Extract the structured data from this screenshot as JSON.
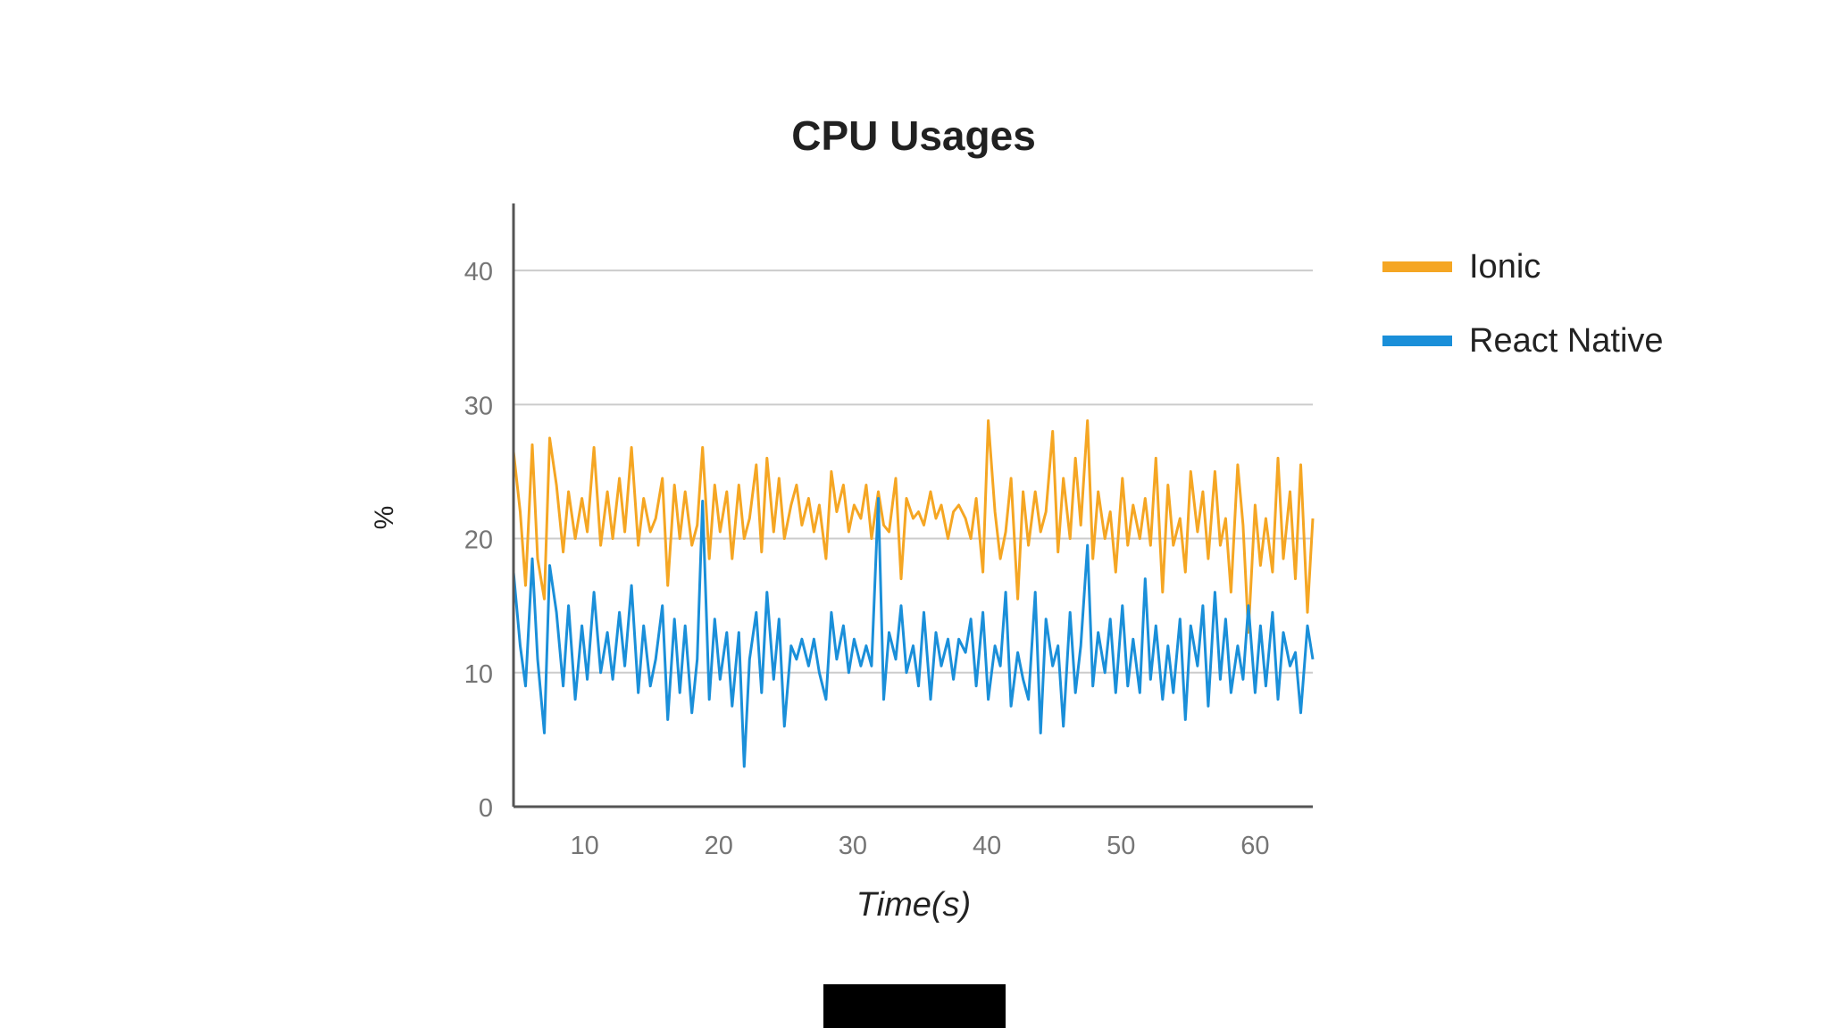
{
  "chart_data": {
    "type": "line",
    "title": "CPU Usages",
    "xlabel": "Time(s)",
    "ylabel": "%",
    "xlim": [
      4.7,
      64.3
    ],
    "ylim": [
      0,
      45
    ],
    "xticks": [
      10,
      20,
      30,
      40,
      50,
      60
    ],
    "yticks": [
      0,
      10,
      20,
      30,
      40
    ],
    "grid": true,
    "legend": "right",
    "series": [
      {
        "name": "Ionic",
        "color": "#F5A623",
        "values": [
          [
            4.7,
            26.5
          ],
          [
            5.2,
            22.0
          ],
          [
            5.6,
            16.5
          ],
          [
            6.1,
            27.0
          ],
          [
            6.5,
            18.5
          ],
          [
            7.0,
            15.5
          ],
          [
            7.4,
            27.5
          ],
          [
            7.9,
            24.0
          ],
          [
            8.4,
            19.0
          ],
          [
            8.8,
            23.5
          ],
          [
            9.3,
            20.0
          ],
          [
            9.8,
            23.0
          ],
          [
            10.2,
            20.5
          ],
          [
            10.7,
            26.8
          ],
          [
            11.2,
            19.5
          ],
          [
            11.7,
            23.5
          ],
          [
            12.1,
            20.0
          ],
          [
            12.6,
            24.5
          ],
          [
            13.0,
            20.5
          ],
          [
            13.5,
            26.8
          ],
          [
            14.0,
            19.5
          ],
          [
            14.4,
            23.0
          ],
          [
            14.9,
            20.5
          ],
          [
            15.3,
            21.5
          ],
          [
            15.8,
            24.5
          ],
          [
            16.2,
            16.5
          ],
          [
            16.7,
            24.0
          ],
          [
            17.1,
            20.0
          ],
          [
            17.5,
            23.5
          ],
          [
            18.0,
            19.5
          ],
          [
            18.4,
            21.0
          ],
          [
            18.8,
            26.8
          ],
          [
            19.3,
            18.5
          ],
          [
            19.7,
            24.0
          ],
          [
            20.1,
            20.5
          ],
          [
            20.6,
            23.5
          ],
          [
            21.0,
            18.5
          ],
          [
            21.5,
            24.0
          ],
          [
            21.9,
            20.0
          ],
          [
            22.3,
            21.5
          ],
          [
            22.8,
            25.5
          ],
          [
            23.2,
            19.0
          ],
          [
            23.6,
            26.0
          ],
          [
            24.1,
            20.5
          ],
          [
            24.5,
            24.5
          ],
          [
            24.9,
            20.0
          ],
          [
            25.4,
            22.5
          ],
          [
            25.8,
            24.0
          ],
          [
            26.2,
            21.0
          ],
          [
            26.7,
            23.0
          ],
          [
            27.1,
            20.5
          ],
          [
            27.5,
            22.5
          ],
          [
            28.0,
            18.5
          ],
          [
            28.4,
            25.0
          ],
          [
            28.8,
            22.0
          ],
          [
            29.3,
            24.0
          ],
          [
            29.7,
            20.5
          ],
          [
            30.1,
            22.5
          ],
          [
            30.6,
            21.5
          ],
          [
            31.0,
            24.0
          ],
          [
            31.4,
            20.0
          ],
          [
            31.9,
            23.5
          ],
          [
            32.3,
            21.0
          ],
          [
            32.7,
            20.5
          ],
          [
            33.2,
            24.5
          ],
          [
            33.6,
            17.0
          ],
          [
            34.0,
            23.0
          ],
          [
            34.5,
            21.5
          ],
          [
            34.9,
            22.0
          ],
          [
            35.3,
            21.0
          ],
          [
            35.8,
            23.5
          ],
          [
            36.2,
            21.5
          ],
          [
            36.6,
            22.5
          ],
          [
            37.1,
            20.0
          ],
          [
            37.5,
            22.0
          ],
          [
            37.9,
            22.5
          ],
          [
            38.4,
            21.5
          ],
          [
            38.8,
            20.0
          ],
          [
            39.2,
            23.0
          ],
          [
            39.7,
            17.5
          ],
          [
            40.1,
            28.8
          ],
          [
            40.6,
            22.0
          ],
          [
            41.0,
            18.5
          ],
          [
            41.4,
            20.5
          ],
          [
            41.8,
            24.5
          ],
          [
            42.3,
            15.5
          ],
          [
            42.7,
            23.5
          ],
          [
            43.1,
            19.5
          ],
          [
            43.6,
            23.5
          ],
          [
            44.0,
            20.5
          ],
          [
            44.4,
            22.0
          ],
          [
            44.9,
            28.0
          ],
          [
            45.3,
            19.0
          ],
          [
            45.7,
            24.5
          ],
          [
            46.2,
            20.0
          ],
          [
            46.6,
            26.0
          ],
          [
            47.0,
            21.0
          ],
          [
            47.5,
            28.8
          ],
          [
            47.9,
            18.5
          ],
          [
            48.3,
            23.5
          ],
          [
            48.8,
            20.0
          ],
          [
            49.2,
            22.0
          ],
          [
            49.6,
            17.5
          ],
          [
            50.1,
            24.5
          ],
          [
            50.5,
            19.5
          ],
          [
            50.9,
            22.5
          ],
          [
            51.4,
            20.0
          ],
          [
            51.8,
            23.0
          ],
          [
            52.2,
            19.5
          ],
          [
            52.6,
            26.0
          ],
          [
            53.1,
            16.0
          ],
          [
            53.5,
            24.0
          ],
          [
            53.9,
            19.5
          ],
          [
            54.4,
            21.5
          ],
          [
            54.8,
            17.5
          ],
          [
            55.2,
            25.0
          ],
          [
            55.7,
            20.5
          ],
          [
            56.1,
            23.5
          ],
          [
            56.5,
            18.5
          ],
          [
            57.0,
            25.0
          ],
          [
            57.4,
            19.5
          ],
          [
            57.8,
            21.5
          ],
          [
            58.2,
            16.0
          ],
          [
            58.7,
            25.5
          ],
          [
            59.1,
            21.0
          ],
          [
            59.5,
            13.0
          ],
          [
            60.0,
            22.5
          ],
          [
            60.4,
            18.0
          ],
          [
            60.8,
            21.5
          ],
          [
            61.3,
            17.5
          ],
          [
            61.7,
            26.0
          ],
          [
            62.1,
            18.5
          ],
          [
            62.6,
            23.5
          ],
          [
            63.0,
            17.0
          ],
          [
            63.4,
            25.5
          ],
          [
            63.9,
            14.5
          ],
          [
            64.3,
            21.5
          ]
        ]
      },
      {
        "name": "React Native",
        "color": "#1A8FD9",
        "values": [
          [
            4.7,
            17.5
          ],
          [
            5.2,
            12.0
          ],
          [
            5.6,
            9.0
          ],
          [
            6.1,
            18.5
          ],
          [
            6.5,
            11.0
          ],
          [
            7.0,
            5.5
          ],
          [
            7.4,
            18.0
          ],
          [
            7.9,
            14.5
          ],
          [
            8.4,
            9.0
          ],
          [
            8.8,
            15.0
          ],
          [
            9.3,
            8.0
          ],
          [
            9.8,
            13.5
          ],
          [
            10.2,
            9.5
          ],
          [
            10.7,
            16.0
          ],
          [
            11.2,
            10.0
          ],
          [
            11.7,
            13.0
          ],
          [
            12.1,
            9.5
          ],
          [
            12.6,
            14.5
          ],
          [
            13.0,
            10.5
          ],
          [
            13.5,
            16.5
          ],
          [
            14.0,
            8.5
          ],
          [
            14.4,
            13.5
          ],
          [
            14.9,
            9.0
          ],
          [
            15.3,
            11.0
          ],
          [
            15.8,
            15.0
          ],
          [
            16.2,
            6.5
          ],
          [
            16.7,
            14.0
          ],
          [
            17.1,
            8.5
          ],
          [
            17.5,
            13.5
          ],
          [
            18.0,
            7.0
          ],
          [
            18.4,
            11.0
          ],
          [
            18.8,
            22.8
          ],
          [
            19.3,
            8.0
          ],
          [
            19.7,
            14.0
          ],
          [
            20.1,
            9.5
          ],
          [
            20.6,
            13.0
          ],
          [
            21.0,
            7.5
          ],
          [
            21.5,
            13.0
          ],
          [
            21.9,
            3.0
          ],
          [
            22.3,
            11.0
          ],
          [
            22.8,
            14.5
          ],
          [
            23.2,
            8.5
          ],
          [
            23.6,
            16.0
          ],
          [
            24.1,
            9.5
          ],
          [
            24.5,
            14.0
          ],
          [
            24.9,
            6.0
          ],
          [
            25.4,
            12.0
          ],
          [
            25.8,
            11.0
          ],
          [
            26.2,
            12.5
          ],
          [
            26.7,
            10.5
          ],
          [
            27.1,
            12.5
          ],
          [
            27.5,
            10.0
          ],
          [
            28.0,
            8.0
          ],
          [
            28.4,
            14.5
          ],
          [
            28.8,
            11.0
          ],
          [
            29.3,
            13.5
          ],
          [
            29.7,
            10.0
          ],
          [
            30.1,
            12.5
          ],
          [
            30.6,
            10.5
          ],
          [
            31.0,
            12.0
          ],
          [
            31.4,
            10.5
          ],
          [
            31.9,
            23.0
          ],
          [
            32.3,
            8.0
          ],
          [
            32.7,
            13.0
          ],
          [
            33.2,
            11.0
          ],
          [
            33.6,
            15.0
          ],
          [
            34.0,
            10.0
          ],
          [
            34.5,
            12.0
          ],
          [
            34.9,
            9.0
          ],
          [
            35.3,
            14.5
          ],
          [
            35.8,
            8.0
          ],
          [
            36.2,
            13.0
          ],
          [
            36.6,
            10.5
          ],
          [
            37.1,
            12.5
          ],
          [
            37.5,
            9.5
          ],
          [
            37.9,
            12.5
          ],
          [
            38.4,
            11.5
          ],
          [
            38.8,
            14.0
          ],
          [
            39.2,
            9.0
          ],
          [
            39.7,
            14.5
          ],
          [
            40.1,
            8.0
          ],
          [
            40.6,
            12.0
          ],
          [
            41.0,
            10.5
          ],
          [
            41.4,
            16.0
          ],
          [
            41.8,
            7.5
          ],
          [
            42.3,
            11.5
          ],
          [
            42.7,
            9.5
          ],
          [
            43.1,
            8.0
          ],
          [
            43.6,
            16.0
          ],
          [
            44.0,
            5.5
          ],
          [
            44.4,
            14.0
          ],
          [
            44.9,
            10.5
          ],
          [
            45.3,
            12.0
          ],
          [
            45.7,
            6.0
          ],
          [
            46.2,
            14.5
          ],
          [
            46.6,
            8.5
          ],
          [
            47.0,
            12.0
          ],
          [
            47.5,
            19.5
          ],
          [
            47.9,
            9.0
          ],
          [
            48.3,
            13.0
          ],
          [
            48.8,
            10.0
          ],
          [
            49.2,
            14.0
          ],
          [
            49.6,
            8.5
          ],
          [
            50.1,
            15.0
          ],
          [
            50.5,
            9.0
          ],
          [
            50.9,
            12.5
          ],
          [
            51.4,
            8.5
          ],
          [
            51.8,
            17.0
          ],
          [
            52.2,
            9.5
          ],
          [
            52.6,
            13.5
          ],
          [
            53.1,
            8.0
          ],
          [
            53.5,
            12.0
          ],
          [
            53.9,
            8.5
          ],
          [
            54.4,
            14.0
          ],
          [
            54.8,
            6.5
          ],
          [
            55.2,
            13.5
          ],
          [
            55.7,
            10.5
          ],
          [
            56.1,
            15.0
          ],
          [
            56.5,
            7.5
          ],
          [
            57.0,
            16.0
          ],
          [
            57.4,
            9.5
          ],
          [
            57.8,
            14.0
          ],
          [
            58.2,
            8.5
          ],
          [
            58.7,
            12.0
          ],
          [
            59.1,
            9.5
          ],
          [
            59.5,
            15.0
          ],
          [
            60.0,
            8.5
          ],
          [
            60.4,
            13.5
          ],
          [
            60.8,
            9.0
          ],
          [
            61.3,
            14.5
          ],
          [
            61.7,
            8.0
          ],
          [
            62.1,
            13.0
          ],
          [
            62.6,
            10.5
          ],
          [
            63.0,
            11.5
          ],
          [
            63.4,
            7.0
          ],
          [
            63.9,
            13.5
          ],
          [
            64.3,
            11.0
          ]
        ]
      }
    ]
  }
}
